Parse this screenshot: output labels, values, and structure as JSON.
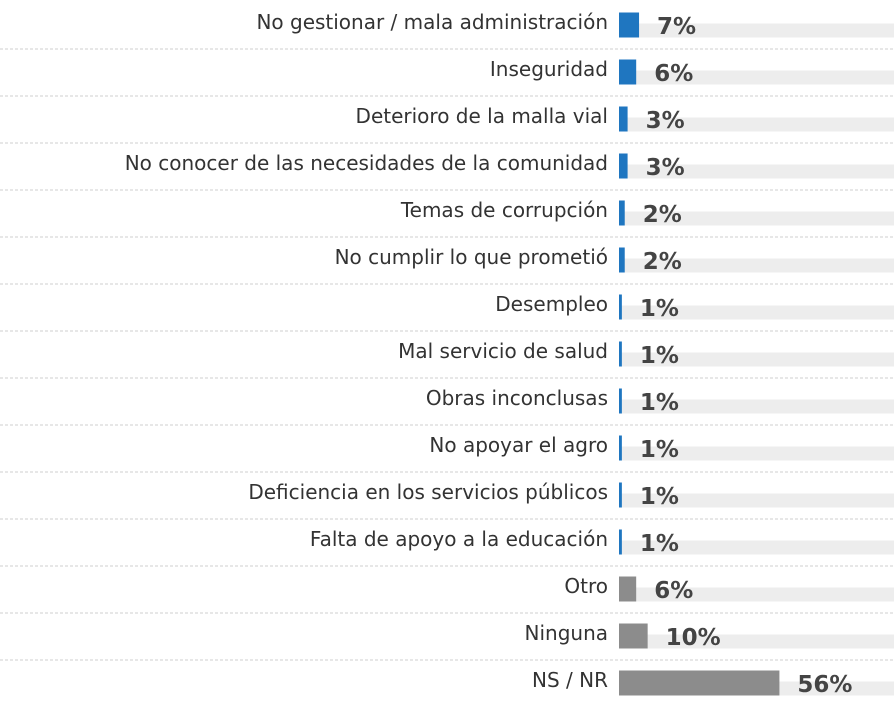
{
  "chart_data": {
    "type": "hbar",
    "categories": [
      "No gestionar / mala administración",
      "Inseguridad",
      "Deterioro de la malla vial",
      "No conocer de las necesidades de la comunidad",
      "Temas de corrupción",
      "No cumplir lo que prometió",
      "Desempleo",
      "Mal servicio de salud",
      "Obras inconclusas",
      "No apoyar el agro",
      "Deficiencia en los servicios públicos",
      "Falta de apoyo a la educación",
      "Otro",
      "Ninguna",
      "NS / NR"
    ],
    "values": [
      7,
      6,
      3,
      3,
      2,
      2,
      1,
      1,
      1,
      1,
      1,
      1,
      6,
      10,
      56
    ],
    "value_labels": [
      "7%",
      "6%",
      "3%",
      "3%",
      "2%",
      "2%",
      "1%",
      "1%",
      "1%",
      "1%",
      "1%",
      "1%",
      "6%",
      "10%",
      "56%"
    ],
    "colors": [
      "#1f76c0",
      "#1f76c0",
      "#1f76c0",
      "#1f76c0",
      "#1f76c0",
      "#1f76c0",
      "#1f76c0",
      "#1f76c0",
      "#1f76c0",
      "#1f76c0",
      "#1f76c0",
      "#1f76c0",
      "#8c8c8c",
      "#8c8c8c",
      "#8c8c8c"
    ],
    "xlim": [
      0,
      96
    ]
  }
}
